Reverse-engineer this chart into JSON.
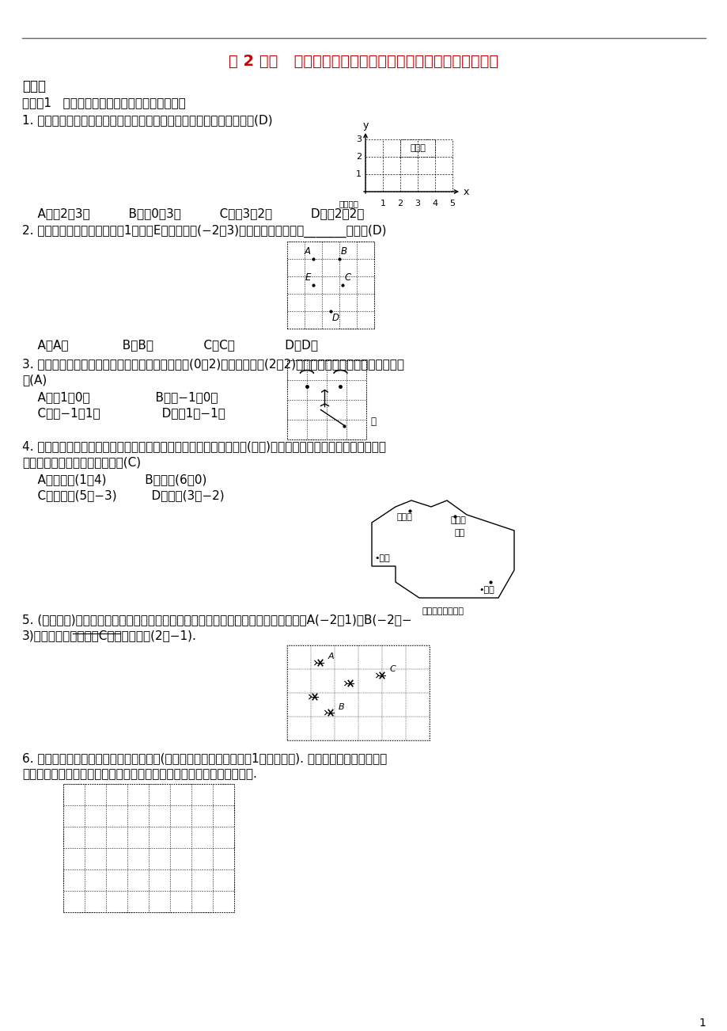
{
  "title": "第 2 课时   利用平面直角坐标系和方位来刻画物体的相对位置",
  "title_color": "#cc0000",
  "bg_color": "#ffffff",
  "section1": "基础题",
  "knowledge1": "知识点1   用平面直角坐标系刻画物体之间的位置",
  "q1": "1. 如图，若以解放公园为原点建立平面直角坐标系，则博物馆的坐标为(D)",
  "q1_options": "    A．（2，3）          B．（0，3）          C．（3，2）          D．（2，2）",
  "q2": "2. 如图，每个小方格的边长为1，如果E点的坐标是(−2，3)，那么原点最可能在_______的位置(D)",
  "q2_options": "    A．A点              B．B点             C．C点             D．D点",
  "q3_line1": "3. 如图是小刚画的一张脸，他对娹娹说，如果我用(0，2)表示左眼，用(2，2)表示右眼，那么嘴的位置可以表示",
  "q3_line2": "成(A)",
  "q3_options_1": "    A．（1，0）                 B．（−1，0）",
  "q3_options_2": "    C．（−1，1）                D．（1，−1）",
  "q4_line1": "4. 张强在某旅游景点的动物园的大门口看到这个动物园的平面示意图(如图)，若以大门为坐标原点，其他四个景",
  "q4_line2": "点大致用坐标表示肯定错误的是(C)",
  "q4_options_1": "    A．熊猫馆(1，4)          B．猴山(6，0)",
  "q4_options_2": "    C．百鸟园(5，−3)         D．驼峰(3，−2)",
  "q5_line1": "5. (绵阳中考)如图是轰炸机群的一个飞行队形，如果最后两架轰炸机的平面坐标分别是A(−2，1)和B(−2，−",
  "q5_line2": "3)，那么第一架轰炸机C的平面坐标是(2，−1).",
  "q6_line1": "6. 如图是我市市区几个旅游景点的示意图(图中每个小正方形的边长为1个单位长度). 请以某景点为原点，画出",
  "q6_line2": "直角坐标系，并用坐标表示下列景点的位置：光岳楼、金凤广场、动物园.",
  "footer": "1",
  "museum_label": "博物馆",
  "jiefang_label": "解放公园",
  "zoo_label": "动物园平面示意图",
  "xiongmao": "熊猫馆",
  "bainiao": "百鸟园",
  "houshanH": "猴山",
  "damen": "大门",
  "tuofeng": "驼峰",
  "zui_label": "嘴",
  "q5_underline": "(2，−1)"
}
